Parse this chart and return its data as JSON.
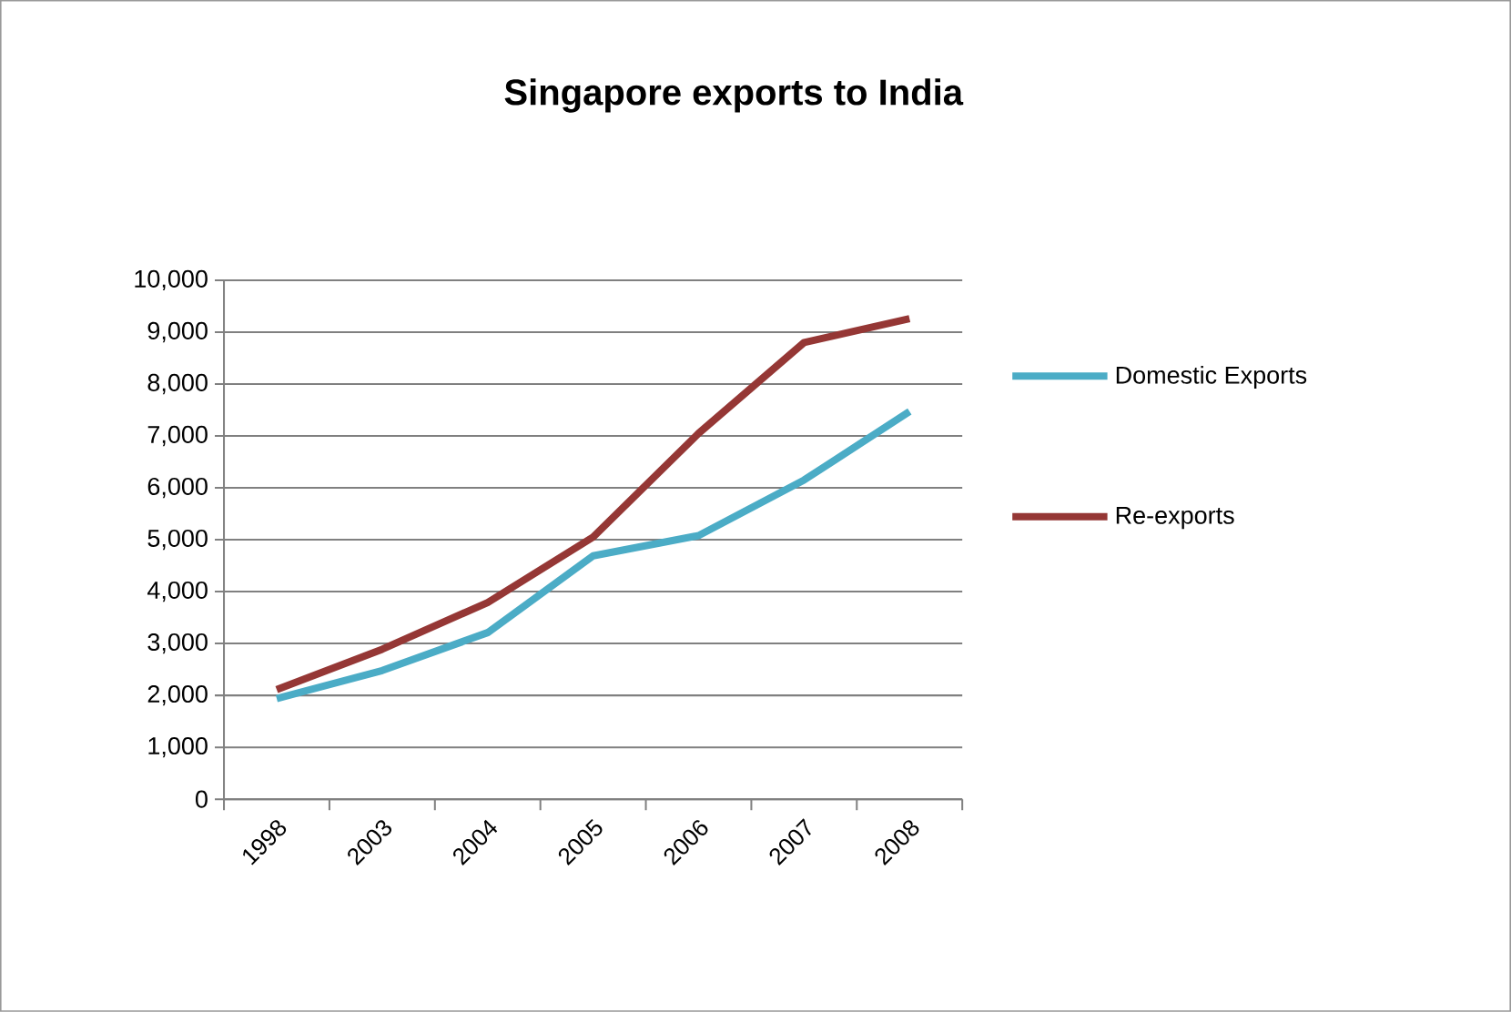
{
  "chart_data": {
    "type": "line",
    "title": "Singapore exports to India",
    "categories": [
      "1998",
      "2003",
      "2004",
      "2005",
      "2006",
      "2007",
      "2008"
    ],
    "series": [
      {
        "name": "Domestic Exports",
        "color": "#4bacc6",
        "values": [
          1940,
          2480,
          3210,
          4690,
          5080,
          6150,
          7470
        ]
      },
      {
        "name": "Re-exports",
        "color": "#953735",
        "values": [
          2110,
          2890,
          3790,
          5050,
          7050,
          8800,
          9260
        ]
      }
    ],
    "ylim": [
      0,
      10000
    ],
    "yticks": [
      {
        "value": 0,
        "label": "0"
      },
      {
        "value": 1000,
        "label": "1,000"
      },
      {
        "value": 2000,
        "label": "2,000"
      },
      {
        "value": 3000,
        "label": "3,000"
      },
      {
        "value": 4000,
        "label": "4,000"
      },
      {
        "value": 5000,
        "label": "5,000"
      },
      {
        "value": 6000,
        "label": "6,000"
      },
      {
        "value": 7000,
        "label": "7,000"
      },
      {
        "value": 8000,
        "label": "8,000"
      },
      {
        "value": 9000,
        "label": "9,000"
      },
      {
        "value": 10000,
        "label": "10,000"
      }
    ],
    "grid": "y",
    "legend": "right",
    "marker": "none",
    "line_style": "solid"
  }
}
